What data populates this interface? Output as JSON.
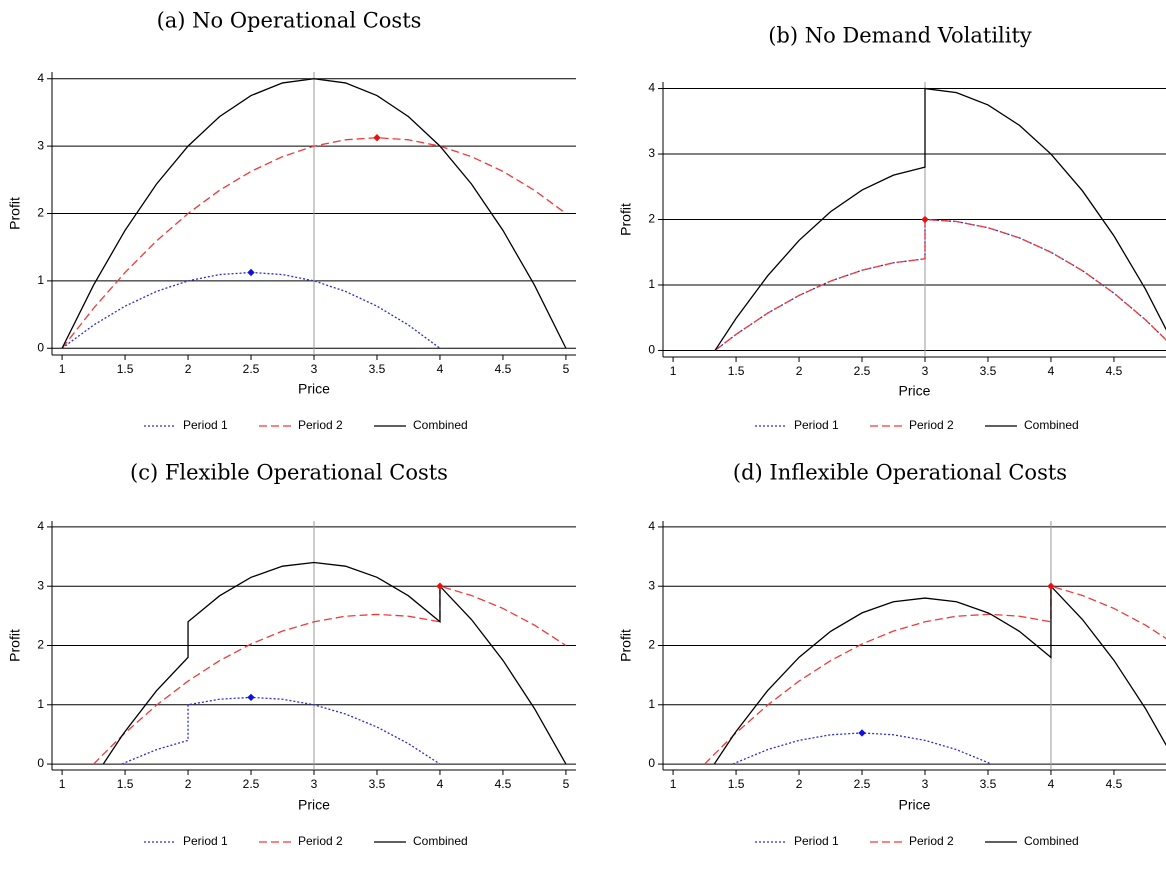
{
  "chart_data": [
    {
      "type": "line",
      "title": "(a) No Operational Costs",
      "x_label": "Price",
      "y_label": "Profit",
      "x": [
        1,
        1.25,
        1.5,
        1.75,
        2,
        2.25,
        2.5,
        2.75,
        3,
        3.25,
        3.5,
        3.75,
        4,
        4.25,
        4.5,
        4.75,
        5
      ],
      "series": [
        {
          "name": "Period 1",
          "color": "#2b2bd9",
          "dash": "dot",
          "values": [
            0,
            0.344,
            0.625,
            0.844,
            1,
            1.094,
            1.125,
            1.094,
            1,
            0.844,
            0.625,
            0.344,
            0,
            null,
            null,
            null,
            null
          ]
        },
        {
          "name": "Period 2",
          "color": "#f03a3a",
          "dash": "dash",
          "values": [
            0,
            0.594,
            1.125,
            1.594,
            2,
            2.344,
            2.625,
            2.844,
            3,
            3.094,
            3.125,
            3.094,
            3,
            2.844,
            2.625,
            2.344,
            2
          ]
        },
        {
          "name": "Combined",
          "color": "#000000",
          "dash": "solid",
          "values": [
            0,
            0.938,
            1.75,
            2.438,
            3,
            3.438,
            3.75,
            3.938,
            4,
            3.938,
            3.75,
            3.438,
            3,
            2.438,
            1.75,
            0.938,
            0
          ]
        }
      ],
      "points": [
        {
          "x": 2.5,
          "y": 1.125,
          "color": "#1010e0"
        },
        {
          "x": 3.5,
          "y": 3.125,
          "color": "#e81010"
        }
      ],
      "xline": 3,
      "xlim": [
        0.92,
        5.08
      ],
      "ylim": [
        -0.1,
        4.1
      ],
      "xticks": [
        1,
        1.5,
        2,
        2.5,
        3,
        3.5,
        4,
        4.5,
        5
      ],
      "yticks": [
        0,
        1,
        2,
        3,
        4
      ],
      "grid": true
    },
    {
      "type": "line",
      "title": "(b) No Demand Volatility",
      "x_label": "Price",
      "y_label": "Profit",
      "x": [
        1.333,
        1.5,
        1.75,
        2,
        2.25,
        2.5,
        2.75,
        3,
        3,
        3.25,
        3.5,
        3.75,
        4,
        4.25,
        4.5,
        4.75,
        5
      ],
      "series": [
        {
          "name": "Period 1",
          "color": "#2b2bd9",
          "dash": "dot",
          "values": [
            0,
            0.245,
            0.569,
            0.84,
            1.059,
            1.225,
            1.339,
            1.4,
            2,
            1.969,
            1.875,
            1.719,
            1.5,
            1.219,
            0.875,
            0.469,
            0
          ]
        },
        {
          "name": "Period 2",
          "color": "#f03a3a",
          "dash": "dash",
          "values": [
            0,
            0.245,
            0.569,
            0.84,
            1.059,
            1.225,
            1.339,
            1.4,
            2,
            1.969,
            1.875,
            1.719,
            1.5,
            1.219,
            0.875,
            0.469,
            0
          ]
        },
        {
          "name": "Combined",
          "color": "#000000",
          "dash": "solid",
          "values": [
            0,
            0.49,
            1.138,
            1.68,
            2.118,
            2.45,
            2.678,
            2.8,
            4,
            3.938,
            3.75,
            3.438,
            3,
            2.438,
            1.75,
            0.938,
            0
          ]
        }
      ],
      "points": [
        {
          "x": 3,
          "y": 2,
          "color": "#e81010"
        }
      ],
      "xline": 3,
      "xlim": [
        0.92,
        5.08
      ],
      "ylim": [
        -0.1,
        4.1
      ],
      "xticks": [
        1,
        1.5,
        2,
        2.5,
        3,
        3.5,
        4,
        4.5,
        5
      ],
      "yticks": [
        0,
        1,
        2,
        3,
        4
      ],
      "grid": true
    },
    {
      "type": "line",
      "title": "(c) Flexible Operational Costs",
      "x_label": "Price",
      "y_label": "Profit",
      "x": [
        1.25,
        1.327,
        1.475,
        1.5,
        1.75,
        2,
        2,
        2.25,
        2.5,
        2.75,
        3,
        3.25,
        3.5,
        3.75,
        4,
        4,
        4.25,
        4.5,
        4.75,
        5
      ],
      "series": [
        {
          "name": "Period 1",
          "color": "#2b2bd9",
          "dash": "dot",
          "values": [
            null,
            null,
            0,
            0.025,
            0.244,
            0.4,
            1,
            1.094,
            1.125,
            1.094,
            1,
            0.844,
            0.625,
            0.344,
            0,
            null,
            null,
            null,
            null,
            null
          ]
        },
        {
          "name": "Period 2",
          "color": "#f03a3a",
          "dash": "dash",
          "values": [
            0,
            0.164,
            0.475,
            0.525,
            0.994,
            1.4,
            1.4,
            1.744,
            2.025,
            2.244,
            2.4,
            2.494,
            2.525,
            2.494,
            2.4,
            3,
            2.844,
            2.625,
            2.344,
            2
          ]
        },
        {
          "name": "Combined",
          "color": "#000000",
          "dash": "solid",
          "values": [
            null,
            0,
            0.475,
            0.55,
            1.238,
            1.8,
            2.4,
            2.838,
            3.15,
            3.338,
            3.4,
            3.338,
            3.15,
            2.838,
            2.4,
            3,
            2.438,
            1.75,
            0.938,
            0
          ]
        }
      ],
      "points": [
        {
          "x": 2.5,
          "y": 1.125,
          "color": "#1010e0"
        },
        {
          "x": 4,
          "y": 3,
          "color": "#e81010"
        }
      ],
      "xline": 3,
      "xlim": [
        0.92,
        5.08
      ],
      "ylim": [
        -0.1,
        4.1
      ],
      "xticks": [
        1,
        1.5,
        2,
        2.5,
        3,
        3.5,
        4,
        4.5,
        5
      ],
      "yticks": [
        0,
        1,
        2,
        3,
        4
      ],
      "grid": true
    },
    {
      "type": "line",
      "title": "(d) Inflexible Operational Costs",
      "x_label": "Price",
      "y_label": "Profit",
      "x": [
        1.25,
        1.327,
        1.475,
        1.5,
        1.75,
        2,
        2.25,
        2.5,
        2.75,
        3,
        3.25,
        3.5,
        3.525,
        3.75,
        4,
        4,
        4.25,
        4.5,
        4.75,
        5
      ],
      "series": [
        {
          "name": "Period 1",
          "color": "#2b2bd9",
          "dash": "dot",
          "values": [
            null,
            null,
            0,
            0.025,
            0.244,
            0.4,
            0.494,
            0.525,
            0.494,
            0.4,
            0.244,
            0.025,
            0,
            null,
            null,
            null,
            null,
            null,
            null,
            null
          ]
        },
        {
          "name": "Period 2",
          "color": "#f03a3a",
          "dash": "dash",
          "values": [
            0,
            0.164,
            0.475,
            0.525,
            0.994,
            1.4,
            1.744,
            2.025,
            2.244,
            2.4,
            2.494,
            2.525,
            2.525,
            2.494,
            2.4,
            3,
            2.844,
            2.625,
            2.344,
            2
          ]
        },
        {
          "name": "Combined",
          "color": "#000000",
          "dash": "solid",
          "values": [
            null,
            0,
            0.474,
            0.55,
            1.238,
            1.8,
            2.238,
            2.55,
            2.738,
            2.8,
            2.738,
            2.55,
            2.524,
            2.238,
            1.8,
            3,
            2.438,
            1.75,
            0.938,
            0
          ]
        }
      ],
      "points": [
        {
          "x": 2.5,
          "y": 0.525,
          "color": "#1010e0"
        },
        {
          "x": 4,
          "y": 3,
          "color": "#e81010"
        }
      ],
      "xline": 4,
      "xlim": [
        0.92,
        5.08
      ],
      "ylim": [
        -0.1,
        4.1
      ],
      "xticks": [
        1,
        1.5,
        2,
        2.5,
        3,
        3.5,
        4,
        4.5,
        5
      ],
      "yticks": [
        0,
        1,
        2,
        3,
        4
      ],
      "grid": true
    }
  ]
}
